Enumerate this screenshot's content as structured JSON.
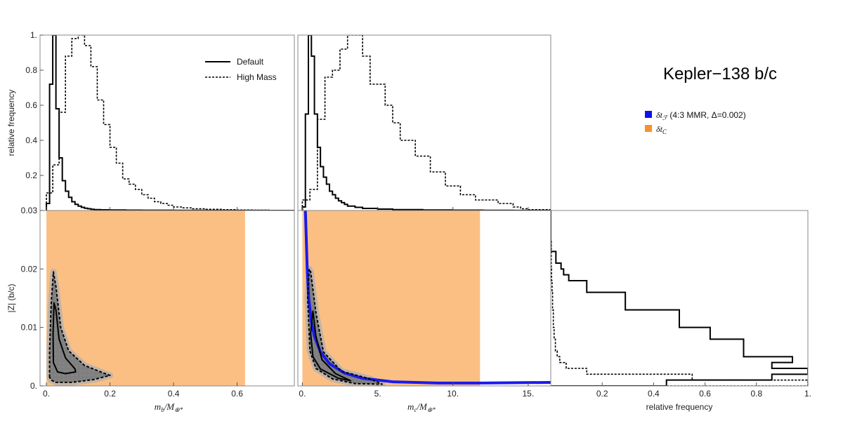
{
  "figure": {
    "title": "Kepler−138 b/c"
  },
  "chart_data": [
    {
      "id": "hist_mb",
      "type": "line",
      "ylabel": "relative frequency",
      "xlim": [
        -0.02,
        0.78
      ],
      "ylim": [
        0,
        1.0
      ],
      "yticks": [
        {
          "v": 0.2,
          "label": "0.2"
        },
        {
          "v": 0.4,
          "label": "0.4"
        },
        {
          "v": 0.6,
          "label": "0.6"
        },
        {
          "v": 0.8,
          "label": "0.8"
        },
        {
          "v": 1.0,
          "label": "1."
        }
      ],
      "legend": {
        "placement": "top-right",
        "entries": [
          {
            "name": "Default",
            "style": "solid"
          },
          {
            "name": "High Mass",
            "style": "dotted"
          }
        ]
      },
      "series": [
        {
          "name": "Default",
          "style": "solid",
          "bin_edges": [
            0,
            0.01,
            0.02,
            0.03,
            0.04,
            0.05,
            0.06,
            0.07,
            0.08,
            0.09,
            0.1,
            0.11,
            0.12,
            0.13,
            0.14,
            0.15,
            0.17,
            0.2,
            0.25,
            0.3,
            0.4,
            0.5,
            0.6,
            0.7,
            0.78
          ],
          "values": [
            0.04,
            0.72,
            1.0,
            0.58,
            0.3,
            0.17,
            0.11,
            0.075,
            0.05,
            0.035,
            0.025,
            0.018,
            0.013,
            0.01,
            0.007,
            0.005,
            0.004,
            0.003,
            0.002,
            0.0015,
            0.001,
            0.0005,
            0.0003,
            0.0002
          ]
        },
        {
          "name": "High Mass",
          "style": "dotted",
          "bin_edges": [
            0,
            0.02,
            0.04,
            0.06,
            0.08,
            0.1,
            0.12,
            0.14,
            0.16,
            0.18,
            0.2,
            0.22,
            0.24,
            0.26,
            0.28,
            0.3,
            0.32,
            0.34,
            0.36,
            0.38,
            0.4,
            0.43,
            0.46,
            0.5,
            0.55,
            0.6,
            0.65,
            0.7,
            0.78
          ],
          "values": [
            0.1,
            0.26,
            0.56,
            0.88,
            0.98,
            1.0,
            0.94,
            0.82,
            0.63,
            0.49,
            0.36,
            0.27,
            0.18,
            0.15,
            0.12,
            0.09,
            0.07,
            0.05,
            0.04,
            0.03,
            0.02,
            0.015,
            0.01,
            0.007,
            0.005,
            0.003,
            0.002,
            0.001
          ]
        }
      ]
    },
    {
      "id": "hist_mc",
      "type": "line",
      "xlim": [
        -0.3,
        16.5
      ],
      "ylim": [
        0,
        1.0
      ],
      "series": [
        {
          "name": "Default",
          "style": "solid",
          "bin_edges": [
            0,
            0.2,
            0.4,
            0.6,
            0.8,
            1.0,
            1.2,
            1.4,
            1.6,
            1.8,
            2.0,
            2.2,
            2.4,
            2.6,
            2.8,
            3.0,
            3.5,
            4.0,
            5.0,
            6.0,
            8.0,
            10.0,
            12.0,
            14.0,
            16.5
          ],
          "values": [
            0.02,
            0.55,
            1.0,
            0.88,
            0.55,
            0.36,
            0.25,
            0.19,
            0.15,
            0.11,
            0.09,
            0.07,
            0.055,
            0.045,
            0.035,
            0.025,
            0.018,
            0.012,
            0.008,
            0.005,
            0.003,
            0.002,
            0.001,
            0.0005
          ]
        },
        {
          "name": "High Mass",
          "style": "dotted",
          "bin_edges": [
            0,
            0.5,
            1.0,
            1.5,
            2.0,
            2.5,
            3.0,
            3.5,
            4.0,
            4.5,
            5.0,
            5.5,
            6.0,
            6.5,
            7.0,
            7.5,
            8.0,
            8.5,
            9.0,
            9.5,
            10.0,
            10.5,
            11.0,
            11.5,
            12.0,
            13.0,
            14.0,
            14.5,
            15.0,
            16.5
          ],
          "values": [
            0.06,
            0.12,
            0.52,
            0.76,
            0.8,
            0.92,
            1.0,
            1.0,
            0.88,
            0.72,
            0.72,
            0.6,
            0.5,
            0.4,
            0.4,
            0.31,
            0.31,
            0.22,
            0.22,
            0.14,
            0.14,
            0.09,
            0.09,
            0.06,
            0.06,
            0.04,
            0.02,
            0.01,
            0.005
          ]
        }
      ]
    },
    {
      "id": "scatter_mb_Z",
      "type": "scatter",
      "xlabel_main": "m",
      "xlabel_sub": "b",
      "xlabel_rest": "/M",
      "xlabel_rest_sub": "⊕*",
      "ylabel": "|Z| (b/c)",
      "xlim": [
        -0.02,
        0.78
      ],
      "ylim": [
        0,
        0.03
      ],
      "xticks": [
        {
          "v": 0.0,
          "label": "0."
        },
        {
          "v": 0.2,
          "label": "0.2"
        },
        {
          "v": 0.4,
          "label": "0.4"
        },
        {
          "v": 0.6,
          "label": "0.6"
        }
      ],
      "yticks": [
        {
          "v": 0.0,
          "label": "0."
        },
        {
          "v": 0.01,
          "label": "0.01"
        },
        {
          "v": 0.02,
          "label": "0.02"
        },
        {
          "v": 0.03,
          "label": "0.03"
        }
      ],
      "shaded_region": {
        "x": [
          0.0,
          0.625
        ],
        "y": [
          0,
          0.03
        ],
        "color": "#fbbf84"
      },
      "contours": [
        {
          "style": "dashed",
          "points": [
            [
              0.01,
              0.0015
            ],
            [
              0.01,
              0.006
            ],
            [
              0.015,
              0.014
            ],
            [
              0.022,
              0.0195
            ],
            [
              0.03,
              0.017
            ],
            [
              0.045,
              0.01
            ],
            [
              0.07,
              0.006
            ],
            [
              0.12,
              0.0035
            ],
            [
              0.18,
              0.0022
            ],
            [
              0.2,
              0.0018
            ],
            [
              0.15,
              0.0011
            ],
            [
              0.08,
              0.0006
            ],
            [
              0.03,
              0.0006
            ],
            [
              0.015,
              0.001
            ]
          ]
        },
        {
          "style": "solid",
          "points": [
            [
              0.022,
              0.004
            ],
            [
              0.021,
              0.009
            ],
            [
              0.024,
              0.0142
            ],
            [
              0.03,
              0.013
            ],
            [
              0.04,
              0.008
            ],
            [
              0.06,
              0.0048
            ],
            [
              0.09,
              0.0029
            ],
            [
              0.092,
              0.0024
            ],
            [
              0.06,
              0.0021
            ],
            [
              0.035,
              0.0024
            ]
          ]
        }
      ]
    },
    {
      "id": "scatter_mc_Z",
      "type": "scatter",
      "xlabel_main": "m",
      "xlabel_sub": "c",
      "xlabel_rest": "/M",
      "xlabel_rest_sub": "⊕*",
      "xlim": [
        -0.3,
        16.5
      ],
      "ylim": [
        0,
        0.03
      ],
      "xticks": [
        {
          "v": 0,
          "label": "0."
        },
        {
          "v": 5,
          "label": "5."
        },
        {
          "v": 10,
          "label": "10."
        },
        {
          "v": 15,
          "label": "15."
        }
      ],
      "shaded_region": {
        "x": [
          0.0,
          11.8
        ],
        "y": [
          0,
          0.03
        ],
        "color": "#fbbf84"
      },
      "ttv_curve": {
        "color": "#1a1aee",
        "points": [
          [
            0.2,
            0.03
          ],
          [
            0.25,
            0.026
          ],
          [
            0.32,
            0.02
          ],
          [
            0.42,
            0.015
          ],
          [
            0.6,
            0.011
          ],
          [
            0.8,
            0.0085
          ],
          [
            1.2,
            0.0058
          ],
          [
            1.8,
            0.0038
          ],
          [
            2.8,
            0.0022
          ],
          [
            4,
            0.0013
          ],
          [
            6,
            0.0007
          ],
          [
            9,
            0.0005
          ],
          [
            12,
            0.0005
          ],
          [
            16.5,
            0.0006
          ]
        ]
      },
      "contours": [
        {
          "style": "dashed",
          "points": [
            [
              0.45,
              0.02
            ],
            [
              0.35,
              0.015
            ],
            [
              0.5,
              0.006
            ],
            [
              0.9,
              0.003
            ],
            [
              2,
              0.0012
            ],
            [
              3.5,
              0.0004
            ],
            [
              5.3,
              0.0003
            ],
            [
              4.5,
              0.0012
            ],
            [
              2.6,
              0.0025
            ],
            [
              1.4,
              0.0058
            ],
            [
              0.9,
              0.0125
            ],
            [
              0.55,
              0.0195
            ]
          ]
        },
        {
          "style": "solid",
          "points": [
            [
              0.7,
              0.0128
            ],
            [
              0.55,
              0.009
            ],
            [
              0.7,
              0.005
            ],
            [
              1.2,
              0.0029
            ],
            [
              2.4,
              0.0013
            ],
            [
              3.2,
              0.0009
            ],
            [
              2.2,
              0.0021
            ],
            [
              1.3,
              0.0045
            ],
            [
              0.9,
              0.0085
            ]
          ]
        }
      ]
    },
    {
      "id": "hist_Z",
      "type": "line",
      "xlabel": "relative frequency",
      "xlim": [
        0,
        1.0
      ],
      "ylim": [
        0,
        0.03
      ],
      "xticks": [
        {
          "v": 0.2,
          "label": "0.2"
        },
        {
          "v": 0.4,
          "label": "0.4"
        },
        {
          "v": 0.6,
          "label": "0.6"
        },
        {
          "v": 0.8,
          "label": "0.8"
        },
        {
          "v": 1.0,
          "label": "1."
        }
      ],
      "series": [
        {
          "name": "Default",
          "style": "solid",
          "bin_edges": [
            0,
            0.0005,
            0.001,
            0.002,
            0.003,
            0.004,
            0.005,
            0.006,
            0.008,
            0.01,
            0.013,
            0.016,
            0.018,
            0.019,
            0.02,
            0.021,
            0.022,
            0.023,
            0.03
          ],
          "values": [
            0.45,
            0.45,
            0.86,
            1.0,
            0.86,
            0.94,
            0.75,
            0.75,
            0.62,
            0.5,
            0.29,
            0.14,
            0.07,
            0.05,
            0.04,
            0.02,
            0.02,
            0.0
          ]
        },
        {
          "name": "High Mass",
          "style": "dotted",
          "bin_edges": [
            0,
            0.0005,
            0.001,
            0.002,
            0.003,
            0.004,
            0.005,
            0.006,
            0.008,
            0.01,
            0.013,
            0.016,
            0.018,
            0.02,
            0.025,
            0.03
          ],
          "values": [
            1.0,
            1.0,
            0.55,
            0.14,
            0.06,
            0.035,
            0.025,
            0.018,
            0.013,
            0.01,
            0.007,
            0.005,
            0.003,
            0.002,
            0.0
          ]
        }
      ]
    }
  ],
  "legend2": {
    "entries": [
      {
        "symbol_prefix": "δt",
        "symbol_sub": "ℱ",
        "suffix": " (4:3 MMR, Δ=0.002)",
        "color": "#1010e8"
      },
      {
        "symbol_prefix": "δt",
        "symbol_sub": "C",
        "suffix": "",
        "color": "#f7922e"
      }
    ]
  }
}
